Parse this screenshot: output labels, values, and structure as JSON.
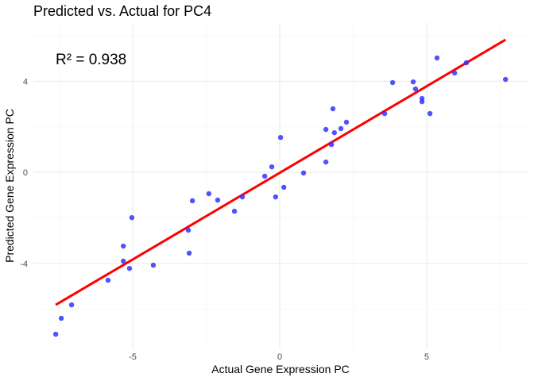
{
  "chart_data": {
    "type": "scatter",
    "title": "Predicted vs. Actual for PC4",
    "xlabel": "Actual Gene Expression PC",
    "ylabel": "Predicted Gene Expression PC",
    "xlim": [
      -8.38,
      8.46
    ],
    "ylim": [
      -7.77,
      6.59
    ],
    "xticks": [
      -5,
      0,
      5
    ],
    "yticks": [
      -4,
      0,
      4
    ],
    "xtick_labels": [
      "-5",
      "0",
      "5"
    ],
    "ytick_labels": [
      "-4",
      "0",
      "4"
    ],
    "xminor": [
      -7.5,
      -2.5,
      2.5,
      7.5
    ],
    "yminor": [
      -6,
      -2,
      2,
      6
    ],
    "grid": true,
    "annotation": "R² = 0.938",
    "point_color": "#3333ff",
    "line_color": "#ff0000",
    "fit_line": {
      "x": [
        -7.62,
        7.68
      ],
      "y": [
        -5.82,
        5.82
      ]
    },
    "points": [
      [
        -7.62,
        -7.11
      ],
      [
        -7.43,
        -6.41
      ],
      [
        -7.08,
        -5.82
      ],
      [
        -5.84,
        -4.74
      ],
      [
        -5.32,
        -3.9
      ],
      [
        -5.11,
        -4.22
      ],
      [
        -5.32,
        -3.24
      ],
      [
        -5.03,
        -1.99
      ],
      [
        -4.3,
        -4.08
      ],
      [
        -3.11,
        -2.54
      ],
      [
        -3.08,
        -3.55
      ],
      [
        -2.97,
        -1.25
      ],
      [
        -2.41,
        -0.94
      ],
      [
        -2.11,
        -1.22
      ],
      [
        -1.54,
        -1.71
      ],
      [
        -1.27,
        -1.08
      ],
      [
        -0.51,
        -0.17
      ],
      [
        -0.27,
        0.24
      ],
      [
        -0.14,
        -1.08
      ],
      [
        0.14,
        -0.66
      ],
      [
        0.03,
        1.53
      ],
      [
        0.81,
        -0.03
      ],
      [
        1.57,
        0.45
      ],
      [
        1.57,
        1.88
      ],
      [
        1.76,
        1.22
      ],
      [
        1.81,
        2.79
      ],
      [
        1.86,
        1.74
      ],
      [
        2.08,
        1.92
      ],
      [
        2.27,
        2.2
      ],
      [
        3.57,
        2.58
      ],
      [
        3.84,
        3.94
      ],
      [
        4.54,
        3.97
      ],
      [
        4.62,
        3.66
      ],
      [
        4.84,
        3.24
      ],
      [
        4.84,
        3.1
      ],
      [
        5.11,
        2.58
      ],
      [
        5.35,
        5.02
      ],
      [
        5.95,
        4.36
      ],
      [
        6.35,
        4.81
      ],
      [
        7.68,
        4.08
      ]
    ]
  }
}
